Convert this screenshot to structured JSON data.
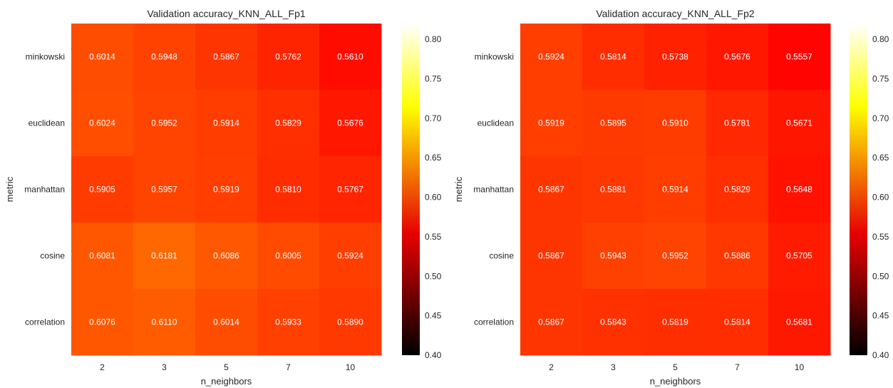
{
  "chart_data": [
    {
      "type": "heatmap",
      "title": "Validation accuracy_KNN_ALL_Fp1",
      "xlabel": "n_neighbors",
      "ylabel": "metric",
      "x_categories": [
        "2",
        "3",
        "5",
        "7",
        "10"
      ],
      "y_categories": [
        "minkowski",
        "euclidean",
        "manhattan",
        "cosine",
        "correlation"
      ],
      "values": [
        [
          0.6014,
          0.5948,
          0.5867,
          0.5762,
          0.561
        ],
        [
          0.6024,
          0.5952,
          0.5914,
          0.5829,
          0.5676
        ],
        [
          0.5905,
          0.5957,
          0.5919,
          0.581,
          0.5767
        ],
        [
          0.6081,
          0.6181,
          0.6086,
          0.6005,
          0.5924
        ],
        [
          0.6076,
          0.611,
          0.6014,
          0.5933,
          0.589
        ]
      ],
      "value_labels": [
        [
          "0.6014",
          "0.5948",
          "0.5867",
          "0.5762",
          "0.5610"
        ],
        [
          "0.6024",
          "0.5952",
          "0.5914",
          "0.5829",
          "0.5676"
        ],
        [
          "0.5905",
          "0.5957",
          "0.5919",
          "0.5810",
          "0.5767"
        ],
        [
          "0.6081",
          "0.6181",
          "0.6086",
          "0.6005",
          "0.5924"
        ],
        [
          "0.6076",
          "0.6110",
          "0.6014",
          "0.5933",
          "0.5890"
        ]
      ],
      "colorbar": {
        "range": [
          0.4,
          0.82
        ],
        "ticks": [
          "0.80",
          "0.75",
          "0.70",
          "0.65",
          "0.60",
          "0.55",
          "0.50",
          "0.45",
          "0.40"
        ],
        "colormap": "hot"
      }
    },
    {
      "type": "heatmap",
      "title": "Validation accuracy_KNN_ALL_Fp2",
      "xlabel": "n_neighbors",
      "ylabel": "metric",
      "x_categories": [
        "2",
        "3",
        "5",
        "7",
        "10"
      ],
      "y_categories": [
        "minkowski",
        "euclidean",
        "manhattan",
        "cosine",
        "correlation"
      ],
      "values": [
        [
          0.5924,
          0.5814,
          0.5738,
          0.5676,
          0.5557
        ],
        [
          0.5919,
          0.5895,
          0.591,
          0.5781,
          0.5671
        ],
        [
          0.5867,
          0.5881,
          0.5914,
          0.5829,
          0.5648
        ],
        [
          0.5867,
          0.5943,
          0.5952,
          0.5886,
          0.5705
        ],
        [
          0.5867,
          0.5843,
          0.5819,
          0.5814,
          0.5681
        ]
      ],
      "value_labels": [
        [
          "0.5924",
          "0.5814",
          "0.5738",
          "0.5676",
          "0.5557"
        ],
        [
          "0.5919",
          "0.5895",
          "0.5910",
          "0.5781",
          "0.5671"
        ],
        [
          "0.5867",
          "0.5881",
          "0.5914",
          "0.5829",
          "0.5648"
        ],
        [
          "0.5867",
          "0.5943",
          "0.5952",
          "0.5886",
          "0.5705"
        ],
        [
          "0.5867",
          "0.5843",
          "0.5819",
          "0.5814",
          "0.5681"
        ]
      ],
      "colorbar": {
        "range": [
          0.4,
          0.82
        ],
        "ticks": [
          "0.80",
          "0.75",
          "0.70",
          "0.65",
          "0.60",
          "0.55",
          "0.50",
          "0.45",
          "0.40"
        ],
        "colormap": "hot"
      }
    }
  ]
}
